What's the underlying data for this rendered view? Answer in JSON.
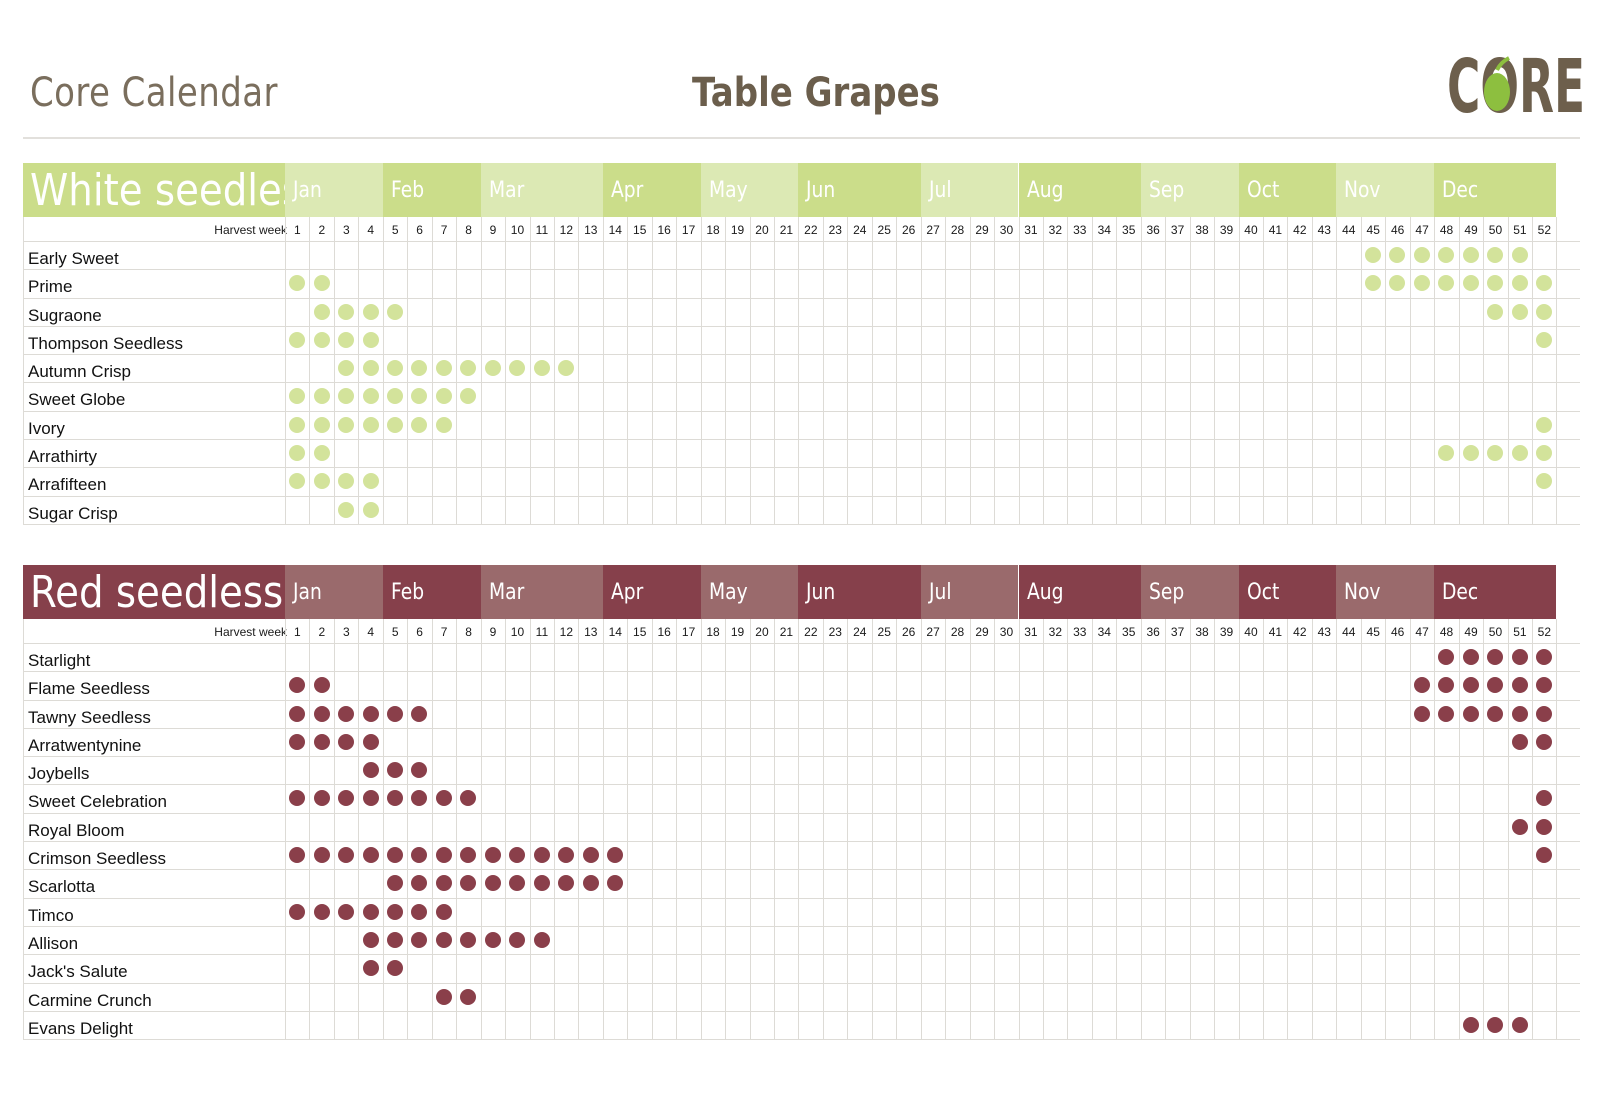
{
  "header": {
    "left_title": "Core Calendar",
    "center_title": "Table Grapes",
    "logo_text": "CORE"
  },
  "months": [
    "Jan",
    "Feb",
    "Mar",
    "Apr",
    "May",
    "Jun",
    "Jul",
    "Aug",
    "Sep",
    "Oct",
    "Nov",
    "Dec"
  ],
  "month_weeks": [
    [
      1,
      4
    ],
    [
      5,
      8
    ],
    [
      9,
      13
    ],
    [
      14,
      17
    ],
    [
      18,
      21
    ],
    [
      22,
      26
    ],
    [
      27,
      30
    ],
    [
      31,
      35
    ],
    [
      36,
      39
    ],
    [
      40,
      43
    ],
    [
      44,
      47
    ],
    [
      48,
      52
    ]
  ],
  "harvest_week_label": "Harvest week",
  "sections": [
    {
      "title": "White seedless",
      "colors": {
        "band_dark": "#cbdd8a",
        "band_light": "#dce9b4",
        "dot": "#d3e39b"
      },
      "rows": [
        {
          "name": "Early Sweet",
          "weeks": [
            45,
            46,
            47,
            48,
            49,
            50,
            51
          ]
        },
        {
          "name": "Prime",
          "weeks": [
            1,
            2,
            45,
            46,
            47,
            48,
            49,
            50,
            51,
            52
          ]
        },
        {
          "name": "Sugraone",
          "weeks": [
            2,
            3,
            4,
            5,
            50,
            51,
            52
          ]
        },
        {
          "name": "Thompson Seedless",
          "weeks": [
            1,
            2,
            3,
            4,
            52
          ]
        },
        {
          "name": "Autumn Crisp",
          "weeks": [
            3,
            4,
            5,
            6,
            7,
            8,
            9,
            10,
            11,
            12
          ]
        },
        {
          "name": "Sweet Globe",
          "weeks": [
            1,
            2,
            3,
            4,
            5,
            6,
            7,
            8
          ]
        },
        {
          "name": "Ivory",
          "weeks": [
            1,
            2,
            3,
            4,
            5,
            6,
            7,
            52
          ]
        },
        {
          "name": "Arrathirty",
          "weeks": [
            1,
            2,
            48,
            49,
            50,
            51,
            52
          ]
        },
        {
          "name": "Arrafifteen",
          "weeks": [
            1,
            2,
            3,
            4,
            52
          ]
        },
        {
          "name": "Sugar Crisp",
          "weeks": [
            3,
            4
          ]
        }
      ]
    },
    {
      "title": "Red seedless",
      "colors": {
        "band_dark": "#86404b",
        "band_light": "#9a6a6c",
        "dot": "#8a3f4a"
      },
      "rows": [
        {
          "name": "Starlight",
          "weeks": [
            48,
            49,
            50,
            51,
            52
          ]
        },
        {
          "name": "Flame Seedless",
          "weeks": [
            1,
            2,
            47,
            48,
            49,
            50,
            51,
            52
          ]
        },
        {
          "name": "Tawny Seedless",
          "weeks": [
            1,
            2,
            3,
            4,
            5,
            6,
            47,
            48,
            49,
            50,
            51,
            52
          ]
        },
        {
          "name": "Arratwentynine",
          "weeks": [
            1,
            2,
            3,
            4,
            51,
            52
          ]
        },
        {
          "name": "Joybells",
          "weeks": [
            4,
            5,
            6
          ]
        },
        {
          "name": "Sweet Celebration",
          "weeks": [
            1,
            2,
            3,
            4,
            5,
            6,
            7,
            8,
            52
          ]
        },
        {
          "name": "Royal Bloom",
          "weeks": [
            51,
            52
          ]
        },
        {
          "name": "Crimson Seedless",
          "weeks": [
            1,
            2,
            3,
            4,
            5,
            6,
            7,
            8,
            9,
            10,
            11,
            12,
            13,
            14,
            52
          ]
        },
        {
          "name": "Scarlotta",
          "weeks": [
            5,
            6,
            7,
            8,
            9,
            10,
            11,
            12,
            13,
            14
          ]
        },
        {
          "name": "Timco",
          "weeks": [
            1,
            2,
            3,
            4,
            5,
            6,
            7
          ]
        },
        {
          "name": "Allison",
          "weeks": [
            4,
            5,
            6,
            7,
            8,
            9,
            10,
            11
          ]
        },
        {
          "name": "Jack's Salute",
          "weeks": [
            4,
            5
          ]
        },
        {
          "name": "Carmine Crunch",
          "weeks": [
            7,
            8
          ]
        },
        {
          "name": "Evans Delight",
          "weeks": [
            49,
            50,
            51
          ]
        }
      ]
    }
  ]
}
